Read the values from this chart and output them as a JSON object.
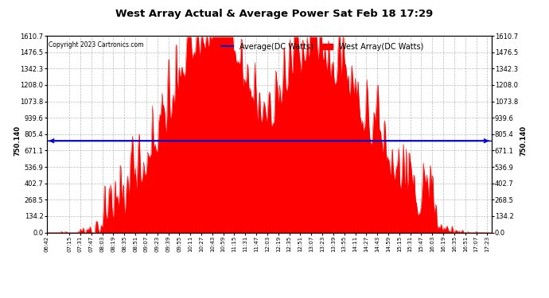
{
  "title": "West Array Actual & Average Power Sat Feb 18 17:29",
  "copyright": "Copyright 2023 Cartronics.com",
  "legend_avg": "Average(DC Watts)",
  "legend_west": "West Array(DC Watts)",
  "avg_line_value": 750.14,
  "y_ticks_left": [
    0.0,
    134.2,
    268.5,
    402.7,
    536.9,
    671.1,
    805.4,
    939.6,
    1073.8,
    1208.0,
    1342.3,
    1476.5,
    1610.7
  ],
  "y_ticks_right": [
    0.0,
    134.2,
    268.5,
    402.7,
    536.9,
    671.1,
    805.4,
    939.6,
    1073.8,
    1208.0,
    1342.3,
    1476.5,
    1610.7
  ],
  "y_max": 1610.7,
  "background_color": "#ffffff",
  "fill_color": "#ff0000",
  "avg_line_color": "#0000cd",
  "grid_color": "#aaaaaa",
  "title_color": "#000000",
  "copyright_color": "#000000",
  "x_tick_labels": [
    "06:42",
    "07:15",
    "07:31",
    "07:47",
    "08:03",
    "08:19",
    "08:35",
    "08:51",
    "09:07",
    "09:23",
    "09:39",
    "09:55",
    "10:11",
    "10:27",
    "10:43",
    "10:59",
    "11:15",
    "11:31",
    "11:47",
    "12:03",
    "12:19",
    "12:35",
    "12:51",
    "13:07",
    "13:23",
    "13:39",
    "13:55",
    "14:11",
    "14:27",
    "14:43",
    "14:59",
    "15:15",
    "15:31",
    "15:47",
    "16:03",
    "16:19",
    "16:35",
    "16:51",
    "17:07",
    "17:23"
  ],
  "x_tick_positions_minutes": [
    0,
    33,
    49,
    65,
    81,
    97,
    113,
    129,
    145,
    161,
    177,
    193,
    209,
    225,
    241,
    257,
    273,
    289,
    305,
    321,
    337,
    353,
    369,
    385,
    401,
    417,
    433,
    449,
    465,
    481,
    497,
    513,
    529,
    545,
    561,
    577,
    593,
    609,
    625,
    641
  ]
}
